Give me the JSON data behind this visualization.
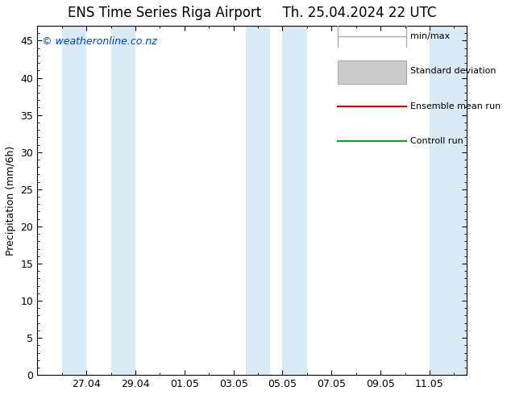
{
  "title_left": "ENS Time Series Riga Airport",
  "title_right": "Th. 25.04.2024 22 UTC",
  "ylabel": "Precipitation (mm/6h)",
  "ymin": 0,
  "ymax": 47,
  "yticks": [
    0,
    5,
    10,
    15,
    20,
    25,
    30,
    35,
    40,
    45
  ],
  "xtick_labels": [
    "27.04",
    "29.04",
    "01.05",
    "03.05",
    "05.05",
    "07.05",
    "09.05",
    "11.05"
  ],
  "background_color": "#ffffff",
  "plot_bg_color": "#ffffff",
  "band_color": "#daeaf5",
  "copyright_text": "© weatheronline.co.nz",
  "copyright_color": "#0044bb",
  "legend_items": [
    {
      "label": "min/max",
      "color": "#aaaaaa",
      "style": "errorbar"
    },
    {
      "label": "Standard deviation",
      "color": "#cccccc",
      "style": "box"
    },
    {
      "label": "Ensemble mean run",
      "color": "#dd0000",
      "style": "line"
    },
    {
      "label": "Controll run",
      "color": "#00aa00",
      "style": "line"
    }
  ],
  "title_fontsize": 12,
  "axis_label_fontsize": 9,
  "tick_fontsize": 9,
  "legend_fontsize": 8,
  "copyright_fontsize": 9,
  "band_ranges": [
    [
      26.0,
      27.0
    ],
    [
      28.0,
      29.0
    ],
    [
      33.5,
      34.5
    ],
    [
      35.0,
      36.0
    ],
    [
      41.0,
      42.5
    ]
  ],
  "x_min": 25.0,
  "x_max": 42.5,
  "xtick_positions": [
    27.0,
    29.0,
    31.0,
    33.0,
    35.0,
    37.0,
    39.0,
    41.0
  ]
}
